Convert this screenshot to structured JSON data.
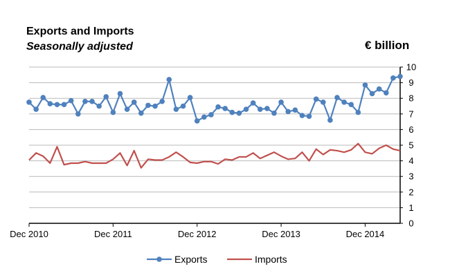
{
  "chart_data": {
    "type": "line",
    "title": "Exports and Imports",
    "subtitle": "Seasonally  adjusted",
    "unit": "€ billion",
    "x_tick_labels": [
      "Dec 2010",
      "Dec 2011",
      "Dec 2012",
      "Dec 2013",
      "Dec 2014"
    ],
    "x_tick_months": [
      0,
      12,
      24,
      36,
      48
    ],
    "x_range_months": [
      0,
      53
    ],
    "ylim": [
      0,
      10
    ],
    "y_ticks": [
      0,
      1,
      2,
      3,
      4,
      5,
      6,
      7,
      8,
      9,
      10
    ],
    "y_axis_side": "right",
    "grid": true,
    "legend_position": "bottom",
    "series": [
      {
        "name": "Exports",
        "color": "#4f81bd",
        "marker": "circle",
        "values": [
          7.75,
          7.3,
          8.05,
          7.65,
          7.6,
          7.6,
          7.85,
          7.0,
          7.8,
          7.8,
          7.5,
          8.1,
          7.1,
          8.3,
          7.3,
          7.75,
          7.05,
          7.55,
          7.5,
          7.8,
          9.2,
          7.3,
          7.5,
          8.05,
          6.55,
          6.8,
          6.95,
          7.45,
          7.35,
          7.1,
          7.05,
          7.3,
          7.7,
          7.3,
          7.35,
          7.05,
          7.75,
          7.15,
          7.25,
          6.9,
          6.85,
          7.95,
          7.75,
          6.6,
          8.05,
          7.75,
          7.6,
          7.1,
          8.85,
          8.3,
          8.6,
          8.35,
          9.3,
          9.4
        ]
      },
      {
        "name": "Imports",
        "color": "#c0504d",
        "marker": "none",
        "values": [
          4.05,
          4.5,
          4.3,
          3.85,
          4.9,
          3.75,
          3.85,
          3.85,
          3.95,
          3.85,
          3.85,
          3.85,
          4.1,
          4.5,
          3.7,
          4.65,
          3.55,
          4.1,
          4.05,
          4.05,
          4.25,
          4.55,
          4.25,
          3.9,
          3.85,
          3.95,
          3.95,
          3.8,
          4.1,
          4.05,
          4.25,
          4.25,
          4.5,
          4.15,
          4.35,
          4.55,
          4.3,
          4.1,
          4.15,
          4.55,
          4.0,
          4.75,
          4.4,
          4.7,
          4.65,
          4.55,
          4.7,
          5.1,
          4.55,
          4.45,
          4.8,
          5.0,
          4.75,
          4.65
        ]
      }
    ]
  }
}
